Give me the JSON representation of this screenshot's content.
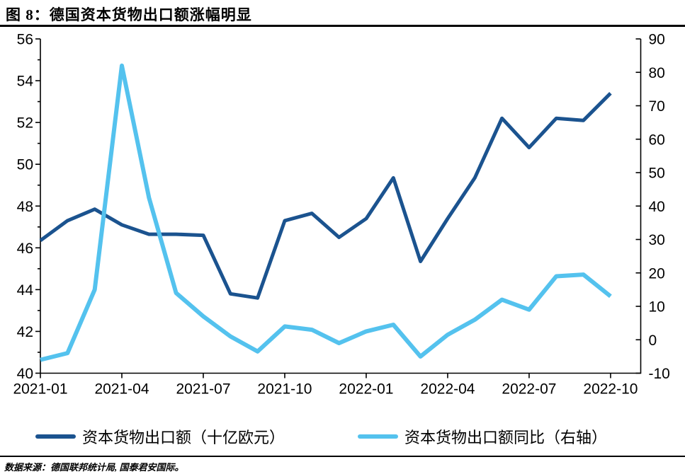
{
  "figure": {
    "title": "图 8：德国资本货物出口额涨幅明显",
    "source": "数据来源：德国联邦统计局, 国泰君安国际。"
  },
  "legend": {
    "exports_label": "资本货物出口额（十亿欧元）",
    "yoy_label": "资本货物出口额同比（右轴）"
  },
  "colors": {
    "exports": "#1B538F",
    "yoy": "#54C2EE",
    "axis": "#000000",
    "text": "#000000"
  },
  "chart_data": {
    "type": "line",
    "title": "图 8：德国资本货物出口额涨幅明显",
    "x": [
      "2021-01",
      "2021-02",
      "2021-03",
      "2021-04",
      "2021-05",
      "2021-06",
      "2021-07",
      "2021-08",
      "2021-09",
      "2021-10",
      "2021-11",
      "2021-12",
      "2022-01",
      "2022-02",
      "2022-03",
      "2022-04",
      "2022-05",
      "2022-06",
      "2022-07",
      "2022-08",
      "2022-09",
      "2022-10"
    ],
    "x_tick_labels": [
      "2021-01",
      "2021-04",
      "2021-07",
      "2021-10",
      "2022-01",
      "2022-04",
      "2022-07",
      "2022-10"
    ],
    "series": [
      {
        "name": "资本货物出口额（十亿欧元）",
        "axis": "left",
        "values": [
          46.35,
          47.3,
          47.85,
          47.1,
          46.65,
          46.65,
          46.6,
          43.8,
          43.6,
          47.3,
          47.65,
          46.5,
          47.4,
          49.35,
          45.35,
          47.4,
          49.35,
          52.2,
          50.8,
          52.2,
          52.1,
          53.4
        ]
      },
      {
        "name": "资本货物出口额同比（右轴）",
        "axis": "right",
        "values": [
          -6,
          -4,
          15,
          82,
          42.5,
          14,
          7,
          1,
          -3.5,
          4,
          3,
          -1,
          2.5,
          4.5,
          -5,
          1.5,
          6,
          12,
          9,
          19,
          19.5,
          13
        ]
      }
    ],
    "left_axis": {
      "min": 40,
      "max": 56,
      "tick_step": 2,
      "minor_step": 1
    },
    "right_axis": {
      "min": -10,
      "max": 90,
      "tick_step": 10
    },
    "grid": false,
    "legend_position": "bottom"
  }
}
